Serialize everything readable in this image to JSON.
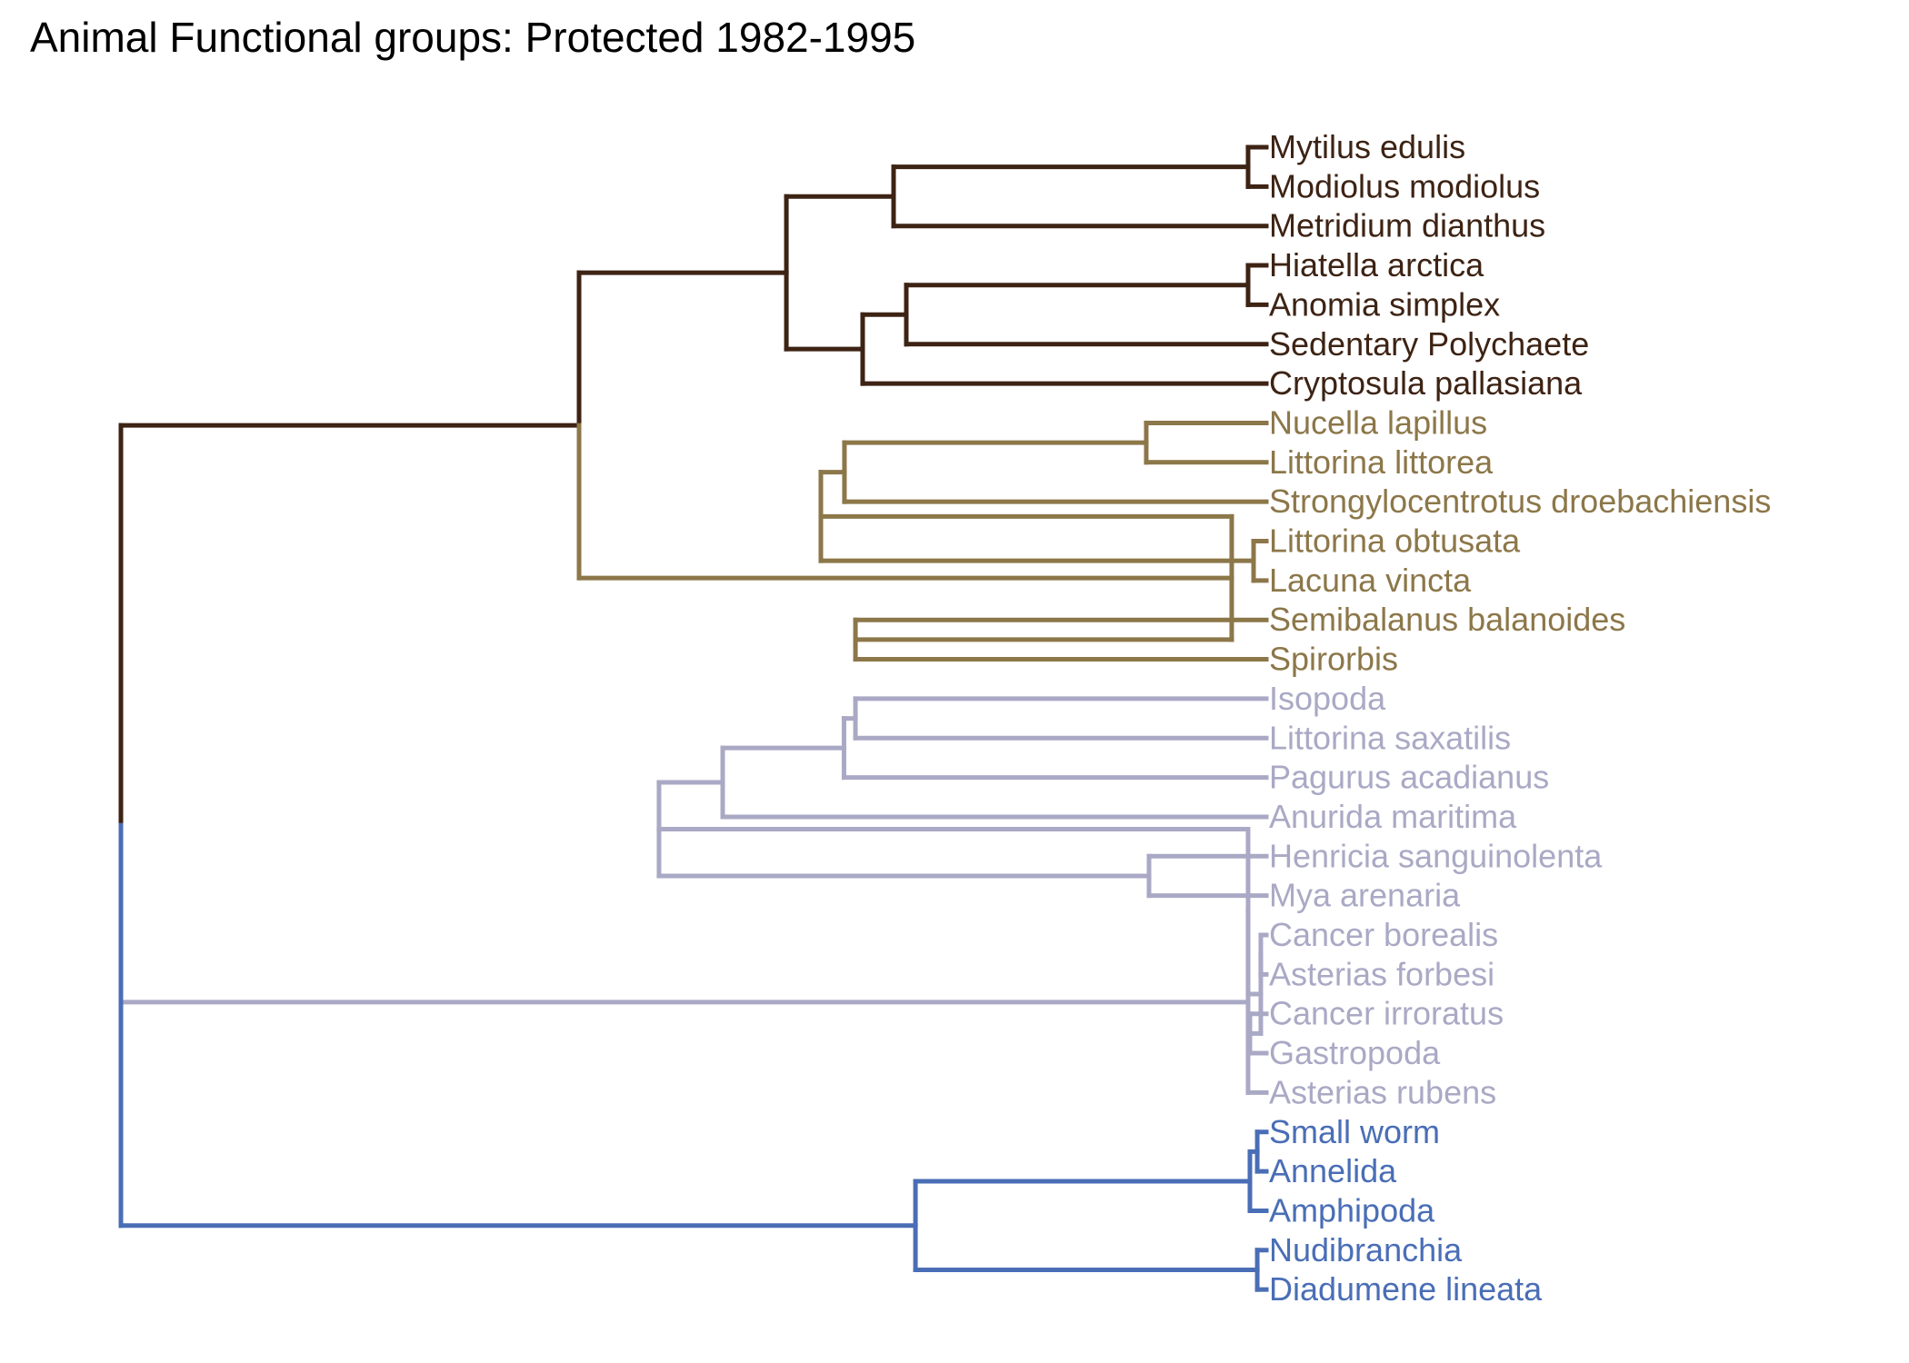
{
  "title": "Animal Functional groups: Protected 1982-1995",
  "colors": {
    "root": "#000000",
    "cluster_1": "#3d2314",
    "cluster_2": "#8c7749",
    "cluster_3": "#aaa9c5",
    "cluster_4": "#4a6eb6"
  },
  "chart_data": {
    "type": "dendrogram",
    "orientation": "horizontal",
    "tree": {
      "color": "root",
      "children": [
        {
          "color": "cluster_1",
          "children": [
            {
              "color": "cluster_1",
              "children": [
                {
                  "color": "cluster_1",
                  "children": [
                    {
                      "color": "cluster_1",
                      "children": [
                        {
                          "label": "Mytilus edulis",
                          "color": "cluster_1"
                        },
                        {
                          "label": "Modiolus modiolus",
                          "color": "cluster_1"
                        }
                      ]
                    },
                    {
                      "label": "Metridium dianthus",
                      "color": "cluster_1"
                    }
                  ]
                },
                {
                  "color": "cluster_1",
                  "children": [
                    {
                      "color": "cluster_1",
                      "children": [
                        {
                          "color": "cluster_1",
                          "children": [
                            {
                              "label": "Hiatella arctica",
                              "color": "cluster_1"
                            },
                            {
                              "label": "Anomia simplex",
                              "color": "cluster_1"
                            }
                          ]
                        },
                        {
                          "label": "Sedentary Polychaete",
                          "color": "cluster_1"
                        }
                      ]
                    },
                    {
                      "label": "Cryptosula pallasiana",
                      "color": "cluster_1"
                    }
                  ]
                }
              ]
            },
            {
              "color": "cluster_2",
              "children": [
                {
                  "color": "cluster_2",
                  "children": [
                    {
                      "color": "cluster_2",
                      "children": [
                        {
                          "color": "cluster_2",
                          "children": [
                            {
                              "label": "Nucella lapillus",
                              "color": "cluster_2"
                            },
                            {
                              "label": "Littorina littorea",
                              "color": "cluster_2"
                            }
                          ]
                        },
                        {
                          "label": "Strongylocentrotus droebachiensis",
                          "color": "cluster_2"
                        }
                      ]
                    },
                    {
                      "color": "cluster_2",
                      "children": [
                        {
                          "label": "Littorina obtusata",
                          "color": "cluster_2"
                        },
                        {
                          "label": "Lacuna vincta",
                          "color": "cluster_2"
                        }
                      ]
                    }
                  ]
                },
                {
                  "color": "cluster_2",
                  "children": [
                    {
                      "label": "Semibalanus balanoides",
                      "color": "cluster_2"
                    },
                    {
                      "label": "Spirorbis",
                      "color": "cluster_2"
                    }
                  ]
                }
              ]
            }
          ]
        },
        {
          "color": "cluster_3",
          "children": [
            {
              "color": "cluster_3",
              "children": [
                {
                  "color": "cluster_3",
                  "children": [
                    {
                      "color": "cluster_3",
                      "children": [
                        {
                          "color": "cluster_3",
                          "children": [
                            {
                              "color": "cluster_3",
                              "children": [
                                {
                                  "label": "Isopoda",
                                  "color": "cluster_3"
                                },
                                {
                                  "label": "Littorina saxatilis",
                                  "color": "cluster_3"
                                }
                              ]
                            },
                            {
                              "label": "Pagurus acadianus",
                              "color": "cluster_3"
                            }
                          ]
                        },
                        {
                          "label": "Anurida maritima",
                          "color": "cluster_3"
                        }
                      ]
                    },
                    {
                      "color": "cluster_3",
                      "children": [
                        {
                          "label": "Henricia sanguinolenta",
                          "color": "cluster_3"
                        },
                        {
                          "label": "Mya arenaria",
                          "color": "cluster_3"
                        }
                      ]
                    }
                  ]
                },
                {
                  "color": "cluster_3",
                  "children": [
                    {
                      "color": "cluster_3",
                      "children": [
                        {
                          "label": "Cancer borealis",
                          "color": "cluster_3"
                        },
                        {
                          "label": "Asterias forbesi",
                          "color": "cluster_3"
                        }
                      ]
                    },
                    {
                      "color": "cluster_3",
                      "children": [
                        {
                          "label": "Cancer irroratus",
                          "color": "cluster_3"
                        },
                        {
                          "label": "Gastropoda",
                          "color": "cluster_3"
                        }
                      ]
                    }
                  ]
                }
              ]
            },
            {
              "label": "Asterias rubens",
              "color": "cluster_3"
            }
          ]
        },
        {
          "color": "cluster_4",
          "children": [
            {
              "color": "cluster_4",
              "children": [
                {
                  "color": "cluster_4",
                  "children": [
                    {
                      "label": "Small worm",
                      "color": "cluster_4"
                    },
                    {
                      "label": "Annelida",
                      "color": "cluster_4"
                    }
                  ]
                },
                {
                  "label": "Amphipoda",
                  "color": "cluster_4"
                }
              ]
            },
            {
              "color": "cluster_4",
              "children": [
                {
                  "label": "Nudibranchia",
                  "color": "cluster_4"
                },
                {
                  "label": "Diadumene lineata",
                  "color": "cluster_4"
                }
              ]
            }
          ]
        }
      ]
    }
  }
}
